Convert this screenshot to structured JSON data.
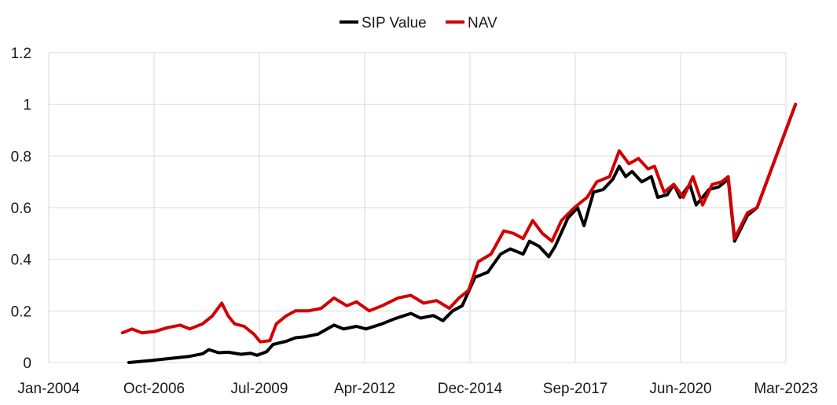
{
  "chart_data": {
    "type": "line",
    "title": "",
    "xlabel": "",
    "ylabel": "",
    "x_ticks": [
      "Jan-2004",
      "Oct-2006",
      "Jul-2009",
      "Apr-2012",
      "Dec-2014",
      "Sep-2017",
      "Jun-2020",
      "Mar-2023"
    ],
    "y_ticks": [
      "0",
      "0.2",
      "0.4",
      "0.6",
      "0.8",
      "1",
      "1.2"
    ],
    "xlim": [
      "2004-01",
      "2023-03"
    ],
    "ylim": [
      0,
      1.2
    ],
    "grid": true,
    "legend": "top-center",
    "series": [
      {
        "name": "SIP Value",
        "color": "#000000",
        "points": [
          [
            "2006-02",
            0.0
          ],
          [
            "2006-09",
            0.008
          ],
          [
            "2007-03",
            0.016
          ],
          [
            "2007-09",
            0.024
          ],
          [
            "2008-01",
            0.034
          ],
          [
            "2008-03",
            0.05
          ],
          [
            "2008-06",
            0.038
          ],
          [
            "2008-09",
            0.04
          ],
          [
            "2009-01",
            0.032
          ],
          [
            "2009-04",
            0.036
          ],
          [
            "2009-06",
            0.028
          ],
          [
            "2009-09",
            0.042
          ],
          [
            "2009-11",
            0.07
          ],
          [
            "2010-03",
            0.082
          ],
          [
            "2010-06",
            0.096
          ],
          [
            "2010-09",
            0.1
          ],
          [
            "2011-01",
            0.11
          ],
          [
            "2011-06",
            0.145
          ],
          [
            "2011-09",
            0.13
          ],
          [
            "2012-01",
            0.14
          ],
          [
            "2012-04",
            0.13
          ],
          [
            "2012-09",
            0.15
          ],
          [
            "2013-01",
            0.17
          ],
          [
            "2013-06",
            0.19
          ],
          [
            "2013-09",
            0.172
          ],
          [
            "2014-01",
            0.182
          ],
          [
            "2014-04",
            0.162
          ],
          [
            "2014-07",
            0.2
          ],
          [
            "2014-10",
            0.22
          ],
          [
            "2015-02",
            0.33
          ],
          [
            "2015-06",
            0.35
          ],
          [
            "2015-10",
            0.42
          ],
          [
            "2016-01",
            0.44
          ],
          [
            "2016-05",
            0.42
          ],
          [
            "2016-07",
            0.47
          ],
          [
            "2016-10",
            0.45
          ],
          [
            "2017-01",
            0.41
          ],
          [
            "2017-03",
            0.45
          ],
          [
            "2017-07",
            0.56
          ],
          [
            "2017-10",
            0.6
          ],
          [
            "2017-12",
            0.53
          ],
          [
            "2018-03",
            0.66
          ],
          [
            "2018-06",
            0.67
          ],
          [
            "2018-09",
            0.71
          ],
          [
            "2018-11",
            0.76
          ],
          [
            "2019-01",
            0.72
          ],
          [
            "2019-03",
            0.74
          ],
          [
            "2019-06",
            0.7
          ],
          [
            "2019-09",
            0.72
          ],
          [
            "2019-11",
            0.64
          ],
          [
            "2020-02",
            0.65
          ],
          [
            "2020-04",
            0.69
          ],
          [
            "2020-06",
            0.64
          ],
          [
            "2020-09",
            0.69
          ],
          [
            "2020-11",
            0.61
          ],
          [
            "2021-03",
            0.67
          ],
          [
            "2021-06",
            0.68
          ],
          [
            "2021-09",
            0.71
          ],
          [
            "2021-11",
            0.47
          ],
          [
            "2022-03",
            0.57
          ],
          [
            "2022-06",
            0.6
          ],
          [
            "2023-06",
            1.0
          ]
        ]
      },
      {
        "name": "NAV",
        "color": "#d40000",
        "points": [
          [
            "2005-12",
            0.115
          ],
          [
            "2006-03",
            0.13
          ],
          [
            "2006-06",
            0.115
          ],
          [
            "2006-10",
            0.12
          ],
          [
            "2007-02",
            0.135
          ],
          [
            "2007-06",
            0.145
          ],
          [
            "2007-09",
            0.13
          ],
          [
            "2008-01",
            0.15
          ],
          [
            "2008-04",
            0.18
          ],
          [
            "2008-07",
            0.23
          ],
          [
            "2008-09",
            0.18
          ],
          [
            "2008-11",
            0.15
          ],
          [
            "2009-02",
            0.14
          ],
          [
            "2009-05",
            0.11
          ],
          [
            "2009-07",
            0.08
          ],
          [
            "2009-10",
            0.085
          ],
          [
            "2009-12",
            0.15
          ],
          [
            "2010-03",
            0.18
          ],
          [
            "2010-06",
            0.2
          ],
          [
            "2010-10",
            0.2
          ],
          [
            "2011-02",
            0.21
          ],
          [
            "2011-06",
            0.25
          ],
          [
            "2011-10",
            0.22
          ],
          [
            "2012-01",
            0.235
          ],
          [
            "2012-05",
            0.2
          ],
          [
            "2012-09",
            0.22
          ],
          [
            "2013-02",
            0.25
          ],
          [
            "2013-06",
            0.26
          ],
          [
            "2013-10",
            0.23
          ],
          [
            "2014-02",
            0.24
          ],
          [
            "2014-06",
            0.21
          ],
          [
            "2014-09",
            0.25
          ],
          [
            "2014-12",
            0.28
          ],
          [
            "2015-03",
            0.39
          ],
          [
            "2015-07",
            0.42
          ],
          [
            "2015-11",
            0.51
          ],
          [
            "2016-02",
            0.5
          ],
          [
            "2016-05",
            0.48
          ],
          [
            "2016-08",
            0.55
          ],
          [
            "2016-11",
            0.5
          ],
          [
            "2017-02",
            0.47
          ],
          [
            "2017-05",
            0.55
          ],
          [
            "2017-09",
            0.6
          ],
          [
            "2018-01",
            0.64
          ],
          [
            "2018-04",
            0.7
          ],
          [
            "2018-08",
            0.72
          ],
          [
            "2018-11",
            0.82
          ],
          [
            "2019-02",
            0.77
          ],
          [
            "2019-05",
            0.79
          ],
          [
            "2019-08",
            0.75
          ],
          [
            "2019-10",
            0.76
          ],
          [
            "2020-01",
            0.66
          ],
          [
            "2020-04",
            0.69
          ],
          [
            "2020-07",
            0.64
          ],
          [
            "2020-10",
            0.72
          ],
          [
            "2021-01",
            0.61
          ],
          [
            "2021-04",
            0.69
          ],
          [
            "2021-07",
            0.7
          ],
          [
            "2021-09",
            0.72
          ],
          [
            "2021-11",
            0.48
          ],
          [
            "2022-03",
            0.58
          ],
          [
            "2022-06",
            0.6
          ],
          [
            "2023-06",
            1.0
          ]
        ]
      }
    ]
  }
}
